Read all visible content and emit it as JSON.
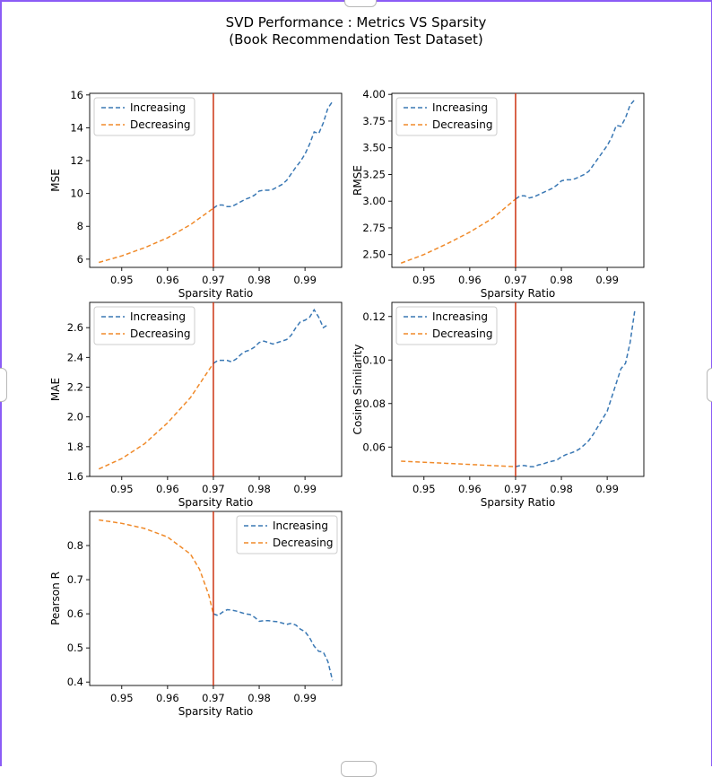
{
  "figure": {
    "title_line1": "SVD Performance : Metrics VS Sparsity",
    "title_line2": "(Book Recommendation Test Dataset)"
  },
  "colors": {
    "increasing": "#3a78b4",
    "decreasing": "#f08a2a",
    "vline": "#cc3311",
    "frame": "#8b5cf6"
  },
  "chart_data": [
    {
      "type": "line",
      "ylabel": "MSE",
      "xlabel": "Sparsity Ratio",
      "xlim": [
        0.943,
        0.998
      ],
      "ylim": [
        5.5,
        16.1
      ],
      "xticks": [
        0.95,
        0.96,
        0.97,
        0.98,
        0.99
      ],
      "yticks": [
        6,
        8,
        10,
        12,
        14,
        16
      ],
      "ytick_labels": [
        "6",
        "8",
        "10",
        "12",
        "14",
        "16"
      ],
      "vline_x": 0.97,
      "legend": "upper-left",
      "series": [
        {
          "name": "Increasing",
          "key": "increasing",
          "x": [
            0.97,
            0.971,
            0.972,
            0.973,
            0.974,
            0.975,
            0.976,
            0.977,
            0.978,
            0.979,
            0.98,
            0.981,
            0.982,
            0.983,
            0.984,
            0.985,
            0.986,
            0.987,
            0.988,
            0.989,
            0.99,
            0.991,
            0.992,
            0.993,
            0.994,
            0.995,
            0.996
          ],
          "y": [
            9.1,
            9.3,
            9.3,
            9.2,
            9.2,
            9.35,
            9.5,
            9.65,
            9.75,
            9.9,
            10.15,
            10.2,
            10.2,
            10.25,
            10.4,
            10.55,
            10.8,
            11.2,
            11.6,
            11.95,
            12.4,
            13.0,
            13.75,
            13.65,
            14.3,
            15.2,
            15.6
          ]
        },
        {
          "name": "Decreasing",
          "key": "decreasing",
          "x": [
            0.945,
            0.95,
            0.955,
            0.96,
            0.965,
            0.97
          ],
          "y": [
            5.8,
            6.2,
            6.7,
            7.3,
            8.1,
            9.1
          ]
        }
      ]
    },
    {
      "type": "line",
      "ylabel": "RMSE",
      "xlabel": "Sparsity Ratio",
      "xlim": [
        0.943,
        0.998
      ],
      "ylim": [
        2.38,
        4.01
      ],
      "xticks": [
        0.95,
        0.96,
        0.97,
        0.98,
        0.99
      ],
      "yticks": [
        2.5,
        2.75,
        3.0,
        3.25,
        3.5,
        3.75,
        4.0
      ],
      "ytick_labels": [
        "2.50",
        "2.75",
        "3.00",
        "3.25",
        "3.50",
        "3.75",
        "4.00"
      ],
      "vline_x": 0.97,
      "legend": "upper-left",
      "series": [
        {
          "name": "Increasing",
          "key": "increasing",
          "x": [
            0.97,
            0.971,
            0.972,
            0.973,
            0.974,
            0.975,
            0.976,
            0.977,
            0.978,
            0.979,
            0.98,
            0.981,
            0.982,
            0.983,
            0.984,
            0.985,
            0.986,
            0.987,
            0.988,
            0.989,
            0.99,
            0.991,
            0.992,
            0.993,
            0.994,
            0.995,
            0.996
          ],
          "y": [
            3.02,
            3.05,
            3.05,
            3.03,
            3.04,
            3.06,
            3.08,
            3.1,
            3.12,
            3.15,
            3.19,
            3.2,
            3.2,
            3.21,
            3.23,
            3.25,
            3.28,
            3.34,
            3.4,
            3.46,
            3.52,
            3.6,
            3.71,
            3.7,
            3.78,
            3.9,
            3.95
          ]
        },
        {
          "name": "Decreasing",
          "key": "decreasing",
          "x": [
            0.945,
            0.95,
            0.955,
            0.96,
            0.965,
            0.97
          ],
          "y": [
            2.42,
            2.5,
            2.6,
            2.71,
            2.84,
            3.02
          ]
        }
      ]
    },
    {
      "type": "line",
      "ylabel": "MAE",
      "xlabel": "Sparsity Ratio",
      "xlim": [
        0.943,
        0.998
      ],
      "ylim": [
        1.6,
        2.77
      ],
      "xticks": [
        0.95,
        0.96,
        0.97,
        0.98,
        0.99
      ],
      "yticks": [
        1.6,
        1.8,
        2.0,
        2.2,
        2.4,
        2.6
      ],
      "ytick_labels": [
        "1.6",
        "1.8",
        "2.0",
        "2.2",
        "2.4",
        "2.6"
      ],
      "vline_x": 0.97,
      "legend": "upper-left",
      "series": [
        {
          "name": "Increasing",
          "key": "increasing",
          "x": [
            0.97,
            0.971,
            0.972,
            0.973,
            0.974,
            0.975,
            0.976,
            0.977,
            0.978,
            0.979,
            0.98,
            0.981,
            0.982,
            0.983,
            0.984,
            0.985,
            0.986,
            0.987,
            0.988,
            0.989,
            0.99,
            0.991,
            0.992,
            0.993,
            0.994,
            0.995
          ],
          "y": [
            2.36,
            2.38,
            2.38,
            2.38,
            2.37,
            2.39,
            2.42,
            2.44,
            2.45,
            2.47,
            2.5,
            2.51,
            2.5,
            2.49,
            2.5,
            2.51,
            2.52,
            2.55,
            2.6,
            2.64,
            2.65,
            2.67,
            2.72,
            2.67,
            2.6,
            2.62
          ]
        },
        {
          "name": "Decreasing",
          "key": "decreasing",
          "x": [
            0.945,
            0.95,
            0.955,
            0.96,
            0.965,
            0.97
          ],
          "y": [
            1.65,
            1.72,
            1.82,
            1.96,
            2.13,
            2.36
          ]
        }
      ]
    },
    {
      "type": "line",
      "ylabel": "Cosine Similarity",
      "xlabel": "Sparsity Ratio",
      "xlim": [
        0.943,
        0.998
      ],
      "ylim": [
        0.0465,
        0.1265
      ],
      "xticks": [
        0.95,
        0.96,
        0.97,
        0.98,
        0.99
      ],
      "yticks": [
        0.06,
        0.08,
        0.1,
        0.12
      ],
      "ytick_labels": [
        "0.06",
        "0.08",
        "0.10",
        "0.12"
      ],
      "vline_x": 0.97,
      "legend": "upper-left",
      "series": [
        {
          "name": "Increasing",
          "key": "increasing",
          "x": [
            0.97,
            0.971,
            0.972,
            0.973,
            0.974,
            0.975,
            0.976,
            0.977,
            0.978,
            0.979,
            0.98,
            0.981,
            0.982,
            0.983,
            0.984,
            0.985,
            0.986,
            0.987,
            0.988,
            0.989,
            0.99,
            0.991,
            0.992,
            0.993,
            0.994,
            0.995,
            0.996
          ],
          "y": [
            0.051,
            0.0515,
            0.0515,
            0.051,
            0.051,
            0.0518,
            0.0522,
            0.053,
            0.0535,
            0.054,
            0.0555,
            0.0565,
            0.0572,
            0.058,
            0.0592,
            0.061,
            0.063,
            0.066,
            0.0695,
            0.073,
            0.0765,
            0.083,
            0.0895,
            0.096,
            0.0985,
            0.108,
            0.1225
          ]
        },
        {
          "name": "Decreasing",
          "key": "decreasing",
          "x": [
            0.945,
            0.95,
            0.955,
            0.96,
            0.965,
            0.97
          ],
          "y": [
            0.0535,
            0.053,
            0.0525,
            0.052,
            0.0515,
            0.051
          ]
        }
      ]
    },
    {
      "type": "line",
      "ylabel": "Pearson R",
      "xlabel": "Sparsity Ratio",
      "xlim": [
        0.943,
        0.998
      ],
      "ylim": [
        0.39,
        0.9
      ],
      "xticks": [
        0.95,
        0.96,
        0.97,
        0.98,
        0.99
      ],
      "yticks": [
        0.4,
        0.5,
        0.6,
        0.7,
        0.8
      ],
      "ytick_labels": [
        "0.4",
        "0.5",
        "0.6",
        "0.7",
        "0.8"
      ],
      "vline_x": 0.97,
      "legend": "upper-right",
      "series": [
        {
          "name": "Increasing",
          "key": "increasing",
          "x": [
            0.97,
            0.971,
            0.972,
            0.973,
            0.974,
            0.975,
            0.976,
            0.977,
            0.978,
            0.979,
            0.98,
            0.981,
            0.982,
            0.983,
            0.984,
            0.985,
            0.986,
            0.987,
            0.988,
            0.989,
            0.99,
            0.991,
            0.992,
            0.993,
            0.994,
            0.995,
            0.996
          ],
          "y": [
            0.6,
            0.595,
            0.605,
            0.612,
            0.611,
            0.608,
            0.604,
            0.6,
            0.598,
            0.59,
            0.578,
            0.58,
            0.58,
            0.578,
            0.577,
            0.573,
            0.569,
            0.572,
            0.567,
            0.555,
            0.548,
            0.53,
            0.505,
            0.49,
            0.488,
            0.46,
            0.405
          ]
        },
        {
          "name": "Decreasing",
          "key": "decreasing",
          "x": [
            0.945,
            0.95,
            0.955,
            0.96,
            0.965,
            0.967,
            0.969,
            0.97
          ],
          "y": [
            0.875,
            0.865,
            0.85,
            0.825,
            0.775,
            0.73,
            0.655,
            0.6
          ]
        }
      ]
    }
  ]
}
